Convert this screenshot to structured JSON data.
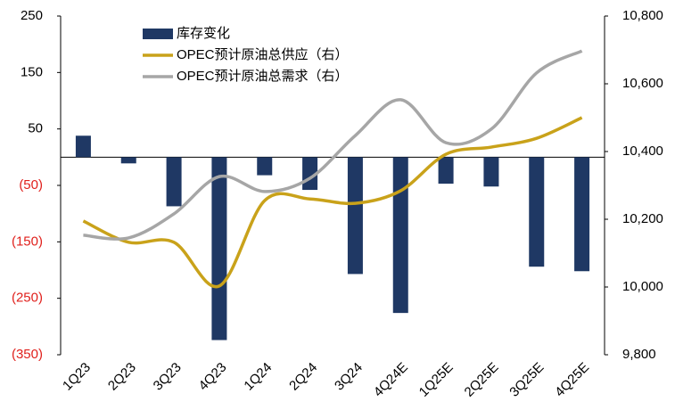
{
  "chart_data": {
    "type": "bar-line",
    "categories": [
      "1Q23",
      "2Q23",
      "3Q23",
      "4Q23",
      "1Q24",
      "2Q24",
      "3Q24",
      "4Q24E",
      "1Q25E",
      "2Q25E",
      "3Q25E",
      "4Q25E"
    ],
    "series": [
      {
        "name": "库存变化",
        "type": "bar",
        "color": "#1f3864",
        "values": [
          38,
          -11,
          -87,
          -324,
          -32,
          -58,
          -207,
          -276,
          -47,
          -52,
          -194,
          -202
        ]
      },
      {
        "name": "OPEC预计原油总供应（右）",
        "type": "line",
        "axis": "y2",
        "color": "#c9a21a",
        "values": [
          10195,
          10132,
          10132,
          10003,
          10255,
          10260,
          10247,
          10284,
          10392,
          10413,
          10439,
          10500
        ]
      },
      {
        "name": "OPEC预计原油总需求（右）",
        "type": "line",
        "axis": "y2",
        "color": "#a6a6a6",
        "values": [
          10153,
          10145,
          10216,
          10326,
          10282,
          10321,
          10447,
          10553,
          10426,
          10466,
          10632,
          10697
        ]
      }
    ],
    "ylim": [
      -350,
      250
    ],
    "yticks": [
      250,
      150,
      50,
      {
        "value": -50,
        "label": "(50)"
      },
      {
        "value": -150,
        "label": "(150)"
      },
      {
        "value": -250,
        "label": "(250)"
      },
      {
        "value": -350,
        "label": "(350)"
      }
    ],
    "negative_tick_color": "#e0201c",
    "y2lim": [
      9800,
      10800
    ],
    "y2ticks": [
      {
        "value": 9800,
        "label": "9,800"
      },
      {
        "value": 10000,
        "label": "10,000"
      },
      {
        "value": 10200,
        "label": "10,200"
      },
      {
        "value": 10400,
        "label": "10,400"
      },
      {
        "value": 10600,
        "label": "10,600"
      },
      {
        "value": 10800,
        "label": "10,800"
      }
    ],
    "legend": "upper left"
  }
}
